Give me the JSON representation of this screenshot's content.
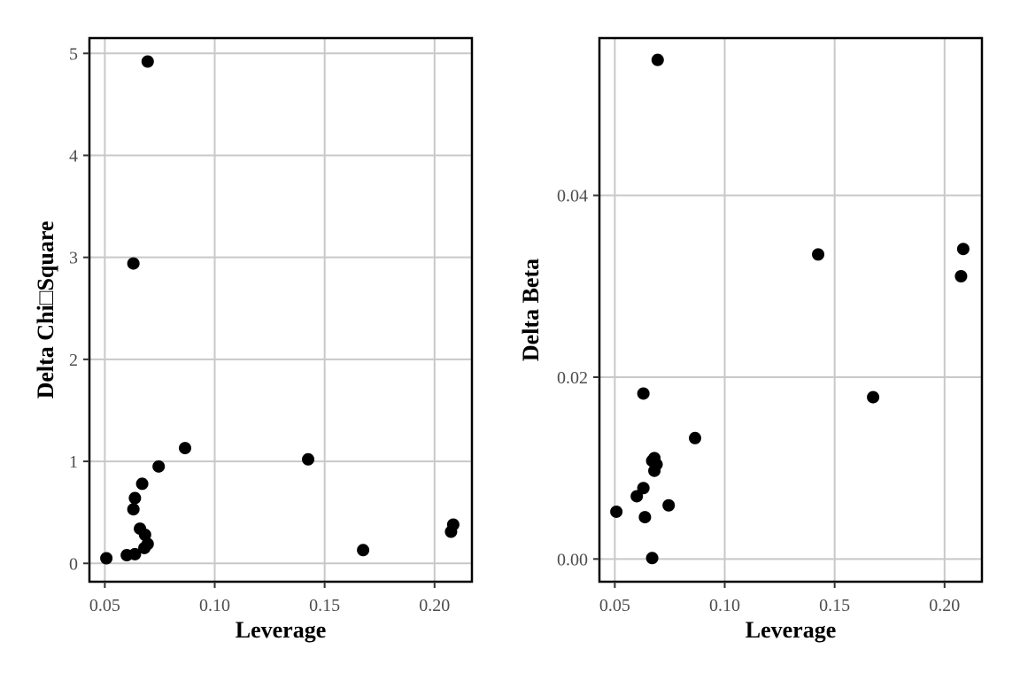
{
  "chart_data": [
    {
      "type": "scatter",
      "xlabel": "Leverage",
      "ylabel": "Delta Chi□Square",
      "xlim": [
        0.043,
        0.217
      ],
      "ylim": [
        -0.18,
        5.15
      ],
      "xticks": [
        0.05,
        0.1,
        0.15,
        0.2
      ],
      "xtick_labels": [
        "0.05",
        "0.10",
        "0.15",
        "0.20"
      ],
      "yticks": [
        0,
        1,
        2,
        3,
        4,
        5
      ],
      "ytick_labels": [
        "0",
        "1",
        "2",
        "3",
        "4",
        "5"
      ],
      "grid": true,
      "x": [
        0.0695,
        0.063,
        0.0865,
        0.1425,
        0.0745,
        0.067,
        0.0637,
        0.063,
        0.066,
        0.0683,
        0.0695,
        0.068,
        0.0637,
        0.06,
        0.0507,
        0.1675,
        0.2085,
        0.2075
      ],
      "y": [
        4.92,
        2.94,
        1.13,
        1.02,
        0.95,
        0.78,
        0.64,
        0.53,
        0.34,
        0.28,
        0.19,
        0.15,
        0.09,
        0.08,
        0.05,
        0.13,
        0.38,
        0.31
      ]
    },
    {
      "type": "scatter",
      "xlabel": "Leverage",
      "ylabel": "Delta Beta",
      "xlim": [
        0.043,
        0.217
      ],
      "ylim": [
        -0.0025,
        0.0573
      ],
      "xticks": [
        0.05,
        0.1,
        0.15,
        0.2
      ],
      "xtick_labels": [
        "0.05",
        "0.10",
        "0.15",
        "0.20"
      ],
      "yticks": [
        0.0,
        0.02,
        0.04
      ],
      "ytick_labels": [
        "0.00",
        "0.02",
        "0.04"
      ],
      "grid": true,
      "x": [
        0.0695,
        0.1425,
        0.2085,
        0.2075,
        0.063,
        0.1675,
        0.0865,
        0.068,
        0.067,
        0.069,
        0.068,
        0.063,
        0.06,
        0.0745,
        0.0507,
        0.0637,
        0.067
      ],
      "y": [
        0.0549,
        0.0335,
        0.0341,
        0.0311,
        0.0182,
        0.0178,
        0.0133,
        0.0111,
        0.0108,
        0.0104,
        0.0097,
        0.0078,
        0.0069,
        0.0059,
        0.0052,
        0.0046,
        0.0001
      ]
    }
  ],
  "colors": {
    "points": "#000000",
    "grid": "#c8c8c8",
    "frame": "#000000"
  }
}
